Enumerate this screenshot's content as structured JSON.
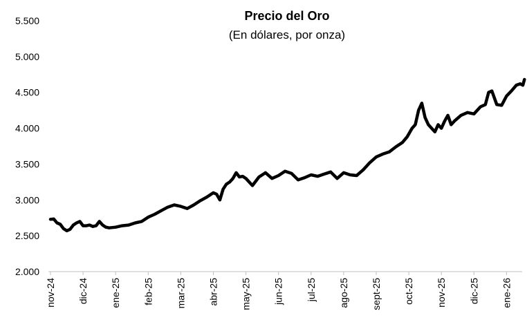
{
  "chart_data": {
    "type": "line",
    "title": "Precio del Oro",
    "subtitle": "(En dólares, por onza)",
    "xlabel": "",
    "ylabel": "",
    "ylim": [
      2000,
      5500
    ],
    "y_ticks": [
      2000,
      2500,
      3000,
      3500,
      4000,
      4500,
      5000,
      5500
    ],
    "y_tick_labels": [
      "2.000",
      "2.500",
      "3.000",
      "3.500",
      "4.000",
      "4.500",
      "5.000",
      "5.500"
    ],
    "x_tick_labels": [
      "nov-24",
      "dic-24",
      "ene-25",
      "feb-25",
      "mar-25",
      "abr-25",
      "may-25",
      "jun-25",
      "jul-25",
      "ago-25",
      "sept-25",
      "oct-25",
      "nov-25",
      "dic-25",
      "ene-26"
    ],
    "grid": false,
    "legend": "none",
    "line_color": "#000000",
    "series": [
      {
        "name": "Precio del Oro",
        "x_month_index": [
          0,
          0.1,
          0.2,
          0.3,
          0.4,
          0.5,
          0.6,
          0.7,
          0.8,
          0.9,
          1.0,
          1.1,
          1.2,
          1.3,
          1.4,
          1.5,
          1.6,
          1.7,
          1.8,
          2.0,
          2.2,
          2.4,
          2.6,
          2.8,
          3.0,
          3.2,
          3.4,
          3.6,
          3.8,
          4.0,
          4.2,
          4.4,
          4.6,
          4.8,
          5.0,
          5.1,
          5.2,
          5.3,
          5.4,
          5.5,
          5.6,
          5.7,
          5.8,
          5.9,
          6.0,
          6.2,
          6.4,
          6.6,
          6.8,
          7.0,
          7.2,
          7.4,
          7.6,
          7.8,
          8.0,
          8.2,
          8.4,
          8.6,
          8.8,
          9.0,
          9.2,
          9.4,
          9.6,
          9.8,
          10.0,
          10.2,
          10.4,
          10.6,
          10.8,
          10.95,
          11.1,
          11.2,
          11.3,
          11.4,
          11.5,
          11.6,
          11.7,
          11.8,
          11.9,
          12.0,
          12.1,
          12.2,
          12.3,
          12.4,
          12.6,
          12.8,
          13.0,
          13.2,
          13.35,
          13.45,
          13.55,
          13.7,
          13.85,
          14.0,
          14.15,
          14.3,
          14.42,
          14.5,
          14.55
        ],
        "values": [
          2730,
          2735,
          2680,
          2660,
          2600,
          2570,
          2590,
          2650,
          2680,
          2700,
          2640,
          2640,
          2650,
          2630,
          2640,
          2700,
          2650,
          2620,
          2610,
          2620,
          2640,
          2650,
          2680,
          2700,
          2760,
          2800,
          2850,
          2900,
          2930,
          2910,
          2880,
          2930,
          2990,
          3040,
          3100,
          3080,
          3000,
          3150,
          3220,
          3250,
          3300,
          3380,
          3320,
          3330,
          3300,
          3200,
          3320,
          3380,
          3300,
          3340,
          3400,
          3370,
          3280,
          3310,
          3350,
          3330,
          3360,
          3390,
          3300,
          3380,
          3350,
          3340,
          3420,
          3520,
          3600,
          3640,
          3670,
          3740,
          3800,
          3880,
          4000,
          4050,
          4250,
          4350,
          4150,
          4050,
          4000,
          3950,
          4050,
          4000,
          4100,
          4180,
          4050,
          4100,
          4180,
          4220,
          4200,
          4300,
          4330,
          4500,
          4520,
          4330,
          4320,
          4450,
          4520,
          4600,
          4620,
          4600,
          4680
        ]
      }
    ]
  }
}
